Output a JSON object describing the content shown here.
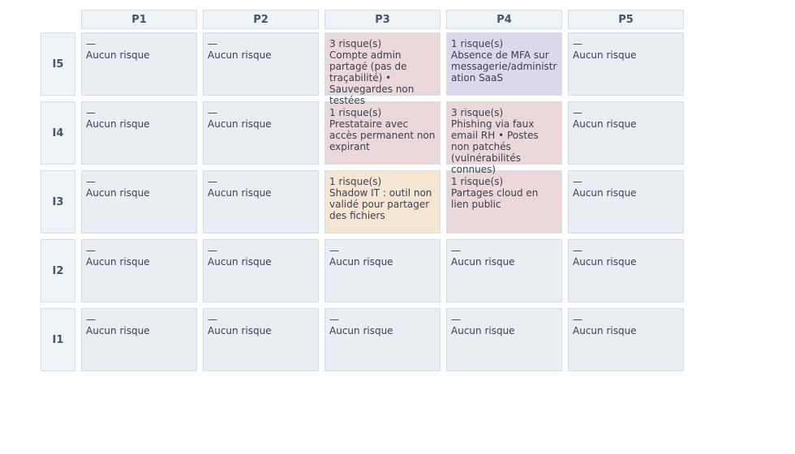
{
  "columns": [
    "P1",
    "P2",
    "P3",
    "P4",
    "P5"
  ],
  "colors": {
    "none": "#eaeef3",
    "high": "#ead7d9",
    "medium": "#f5e6d3",
    "elevated": "#ddd7ec"
  },
  "rows": [
    {
      "label": "I5",
      "cells": [
        {
          "count": "—",
          "text": "Aucun risque",
          "level": "none"
        },
        {
          "count": "—",
          "text": "Aucun risque",
          "level": "none"
        },
        {
          "count": "3 risque(s)",
          "text": "Compte admin partagé (pas de traçabilité) • Sauvegardes non testées",
          "level": "high"
        },
        {
          "count": "1 risque(s)",
          "text": "Absence de MFA sur messagerie/administration SaaS",
          "level": "elevated"
        },
        {
          "count": "—",
          "text": "Aucun risque",
          "level": "none"
        }
      ]
    },
    {
      "label": "I4",
      "cells": [
        {
          "count": "—",
          "text": "Aucun risque",
          "level": "none"
        },
        {
          "count": "—",
          "text": "Aucun risque",
          "level": "none"
        },
        {
          "count": "1 risque(s)",
          "text": "Prestataire avec accès permanent non expirant",
          "level": "high"
        },
        {
          "count": "3 risque(s)",
          "text": "Phishing via faux email RH • Postes non patchés (vulnérabilités connues)",
          "level": "high"
        },
        {
          "count": "—",
          "text": "Aucun risque",
          "level": "none"
        }
      ]
    },
    {
      "label": "I3",
      "cells": [
        {
          "count": "—",
          "text": "Aucun risque",
          "level": "none"
        },
        {
          "count": "—",
          "text": "Aucun risque",
          "level": "none"
        },
        {
          "count": "1 risque(s)",
          "text": "Shadow IT : outil non validé pour partager des fichiers",
          "level": "medium"
        },
        {
          "count": "1 risque(s)",
          "text": "Partages cloud en lien public",
          "level": "high"
        },
        {
          "count": "—",
          "text": "Aucun risque",
          "level": "none"
        }
      ]
    },
    {
      "label": "I2",
      "cells": [
        {
          "count": "—",
          "text": "Aucun risque",
          "level": "none"
        },
        {
          "count": "—",
          "text": "Aucun risque",
          "level": "none"
        },
        {
          "count": "—",
          "text": "Aucun risque",
          "level": "none"
        },
        {
          "count": "—",
          "text": "Aucun risque",
          "level": "none"
        },
        {
          "count": "—",
          "text": "Aucun risque",
          "level": "none"
        }
      ]
    },
    {
      "label": "I1",
      "cells": [
        {
          "count": "—",
          "text": "Aucun risque",
          "level": "none"
        },
        {
          "count": "—",
          "text": "Aucun risque",
          "level": "none"
        },
        {
          "count": "—",
          "text": "Aucun risque",
          "level": "none"
        },
        {
          "count": "—",
          "text": "Aucun risque",
          "level": "none"
        },
        {
          "count": "—",
          "text": "Aucun risque",
          "level": "none"
        }
      ]
    }
  ]
}
